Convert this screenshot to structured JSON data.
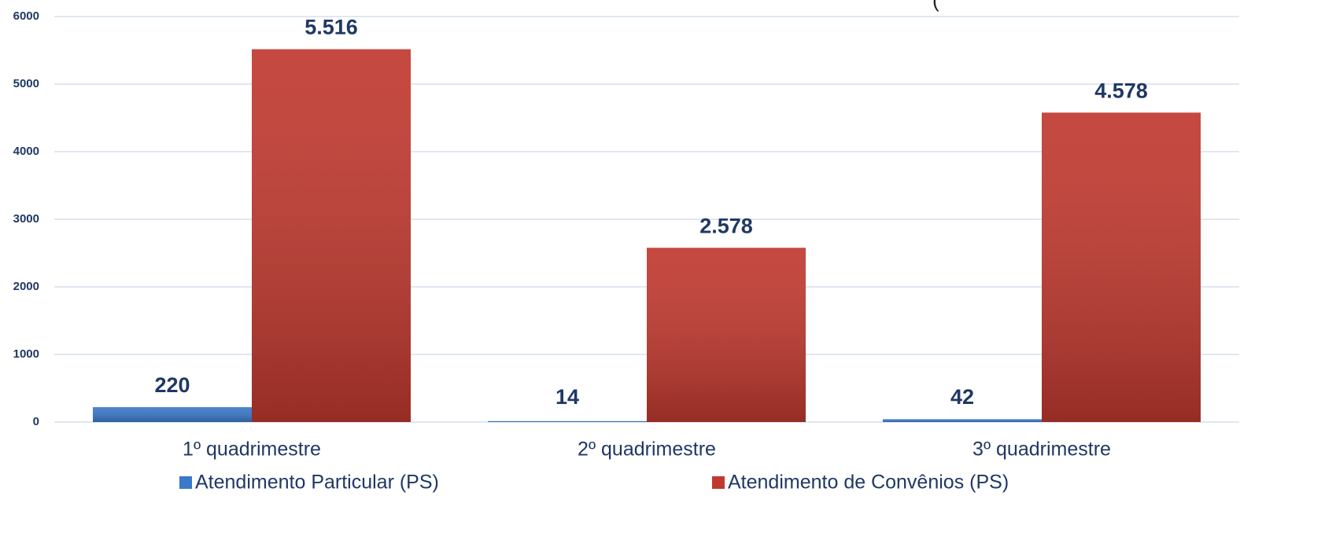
{
  "chart_data": {
    "type": "bar",
    "annotation": "(",
    "categories": [
      "1º quadrimestre",
      "2º quadrimestre",
      "3º quadrimestre"
    ],
    "series": [
      {
        "name": "Atendimento Particular (PS)",
        "color": "#3a78c9",
        "values": [
          220,
          14,
          42
        ]
      },
      {
        "name": "Atendimento de Convênios (PS)",
        "color": "#c0392f",
        "values": [
          5516,
          2578,
          4578
        ],
        "value_labels": [
          "5.516",
          "2.578",
          "4.578"
        ]
      }
    ],
    "ylim": [
      0,
      6000
    ],
    "yticks": [
      0,
      1000,
      2000,
      3000,
      4000,
      5000,
      6000
    ],
    "grid": true
  }
}
